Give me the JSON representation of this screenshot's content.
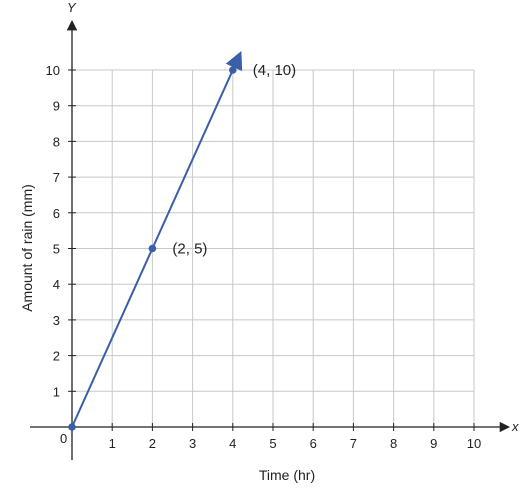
{
  "chart_data": {
    "type": "line",
    "title": "",
    "xlabel": "Time (hr)",
    "ylabel": "Amount of rain (mm)",
    "x_axis_letter": "x",
    "y_axis_letter": "Y",
    "origin_label": "0",
    "xlim": [
      0,
      10
    ],
    "ylim": [
      0,
      10
    ],
    "x_ticks": [
      "1",
      "2",
      "3",
      "4",
      "5",
      "6",
      "7",
      "8",
      "9",
      "10"
    ],
    "y_ticks": [
      "1",
      "2",
      "3",
      "4",
      "5",
      "6",
      "7",
      "8",
      "9",
      "10"
    ],
    "grid": true,
    "series": [
      {
        "x": [
          0,
          2,
          4
        ],
        "y": [
          0,
          5,
          10
        ],
        "arrow_end": true
      }
    ],
    "points": [
      {
        "x": 0,
        "y": 0,
        "label": ""
      },
      {
        "x": 2,
        "y": 5,
        "label": "(2, 5)"
      },
      {
        "x": 4,
        "y": 10,
        "label": "(4, 10)"
      }
    ],
    "colors": {
      "line": "#3a5ea8",
      "grid": "#c8c8c8",
      "axis": "#222222"
    }
  }
}
